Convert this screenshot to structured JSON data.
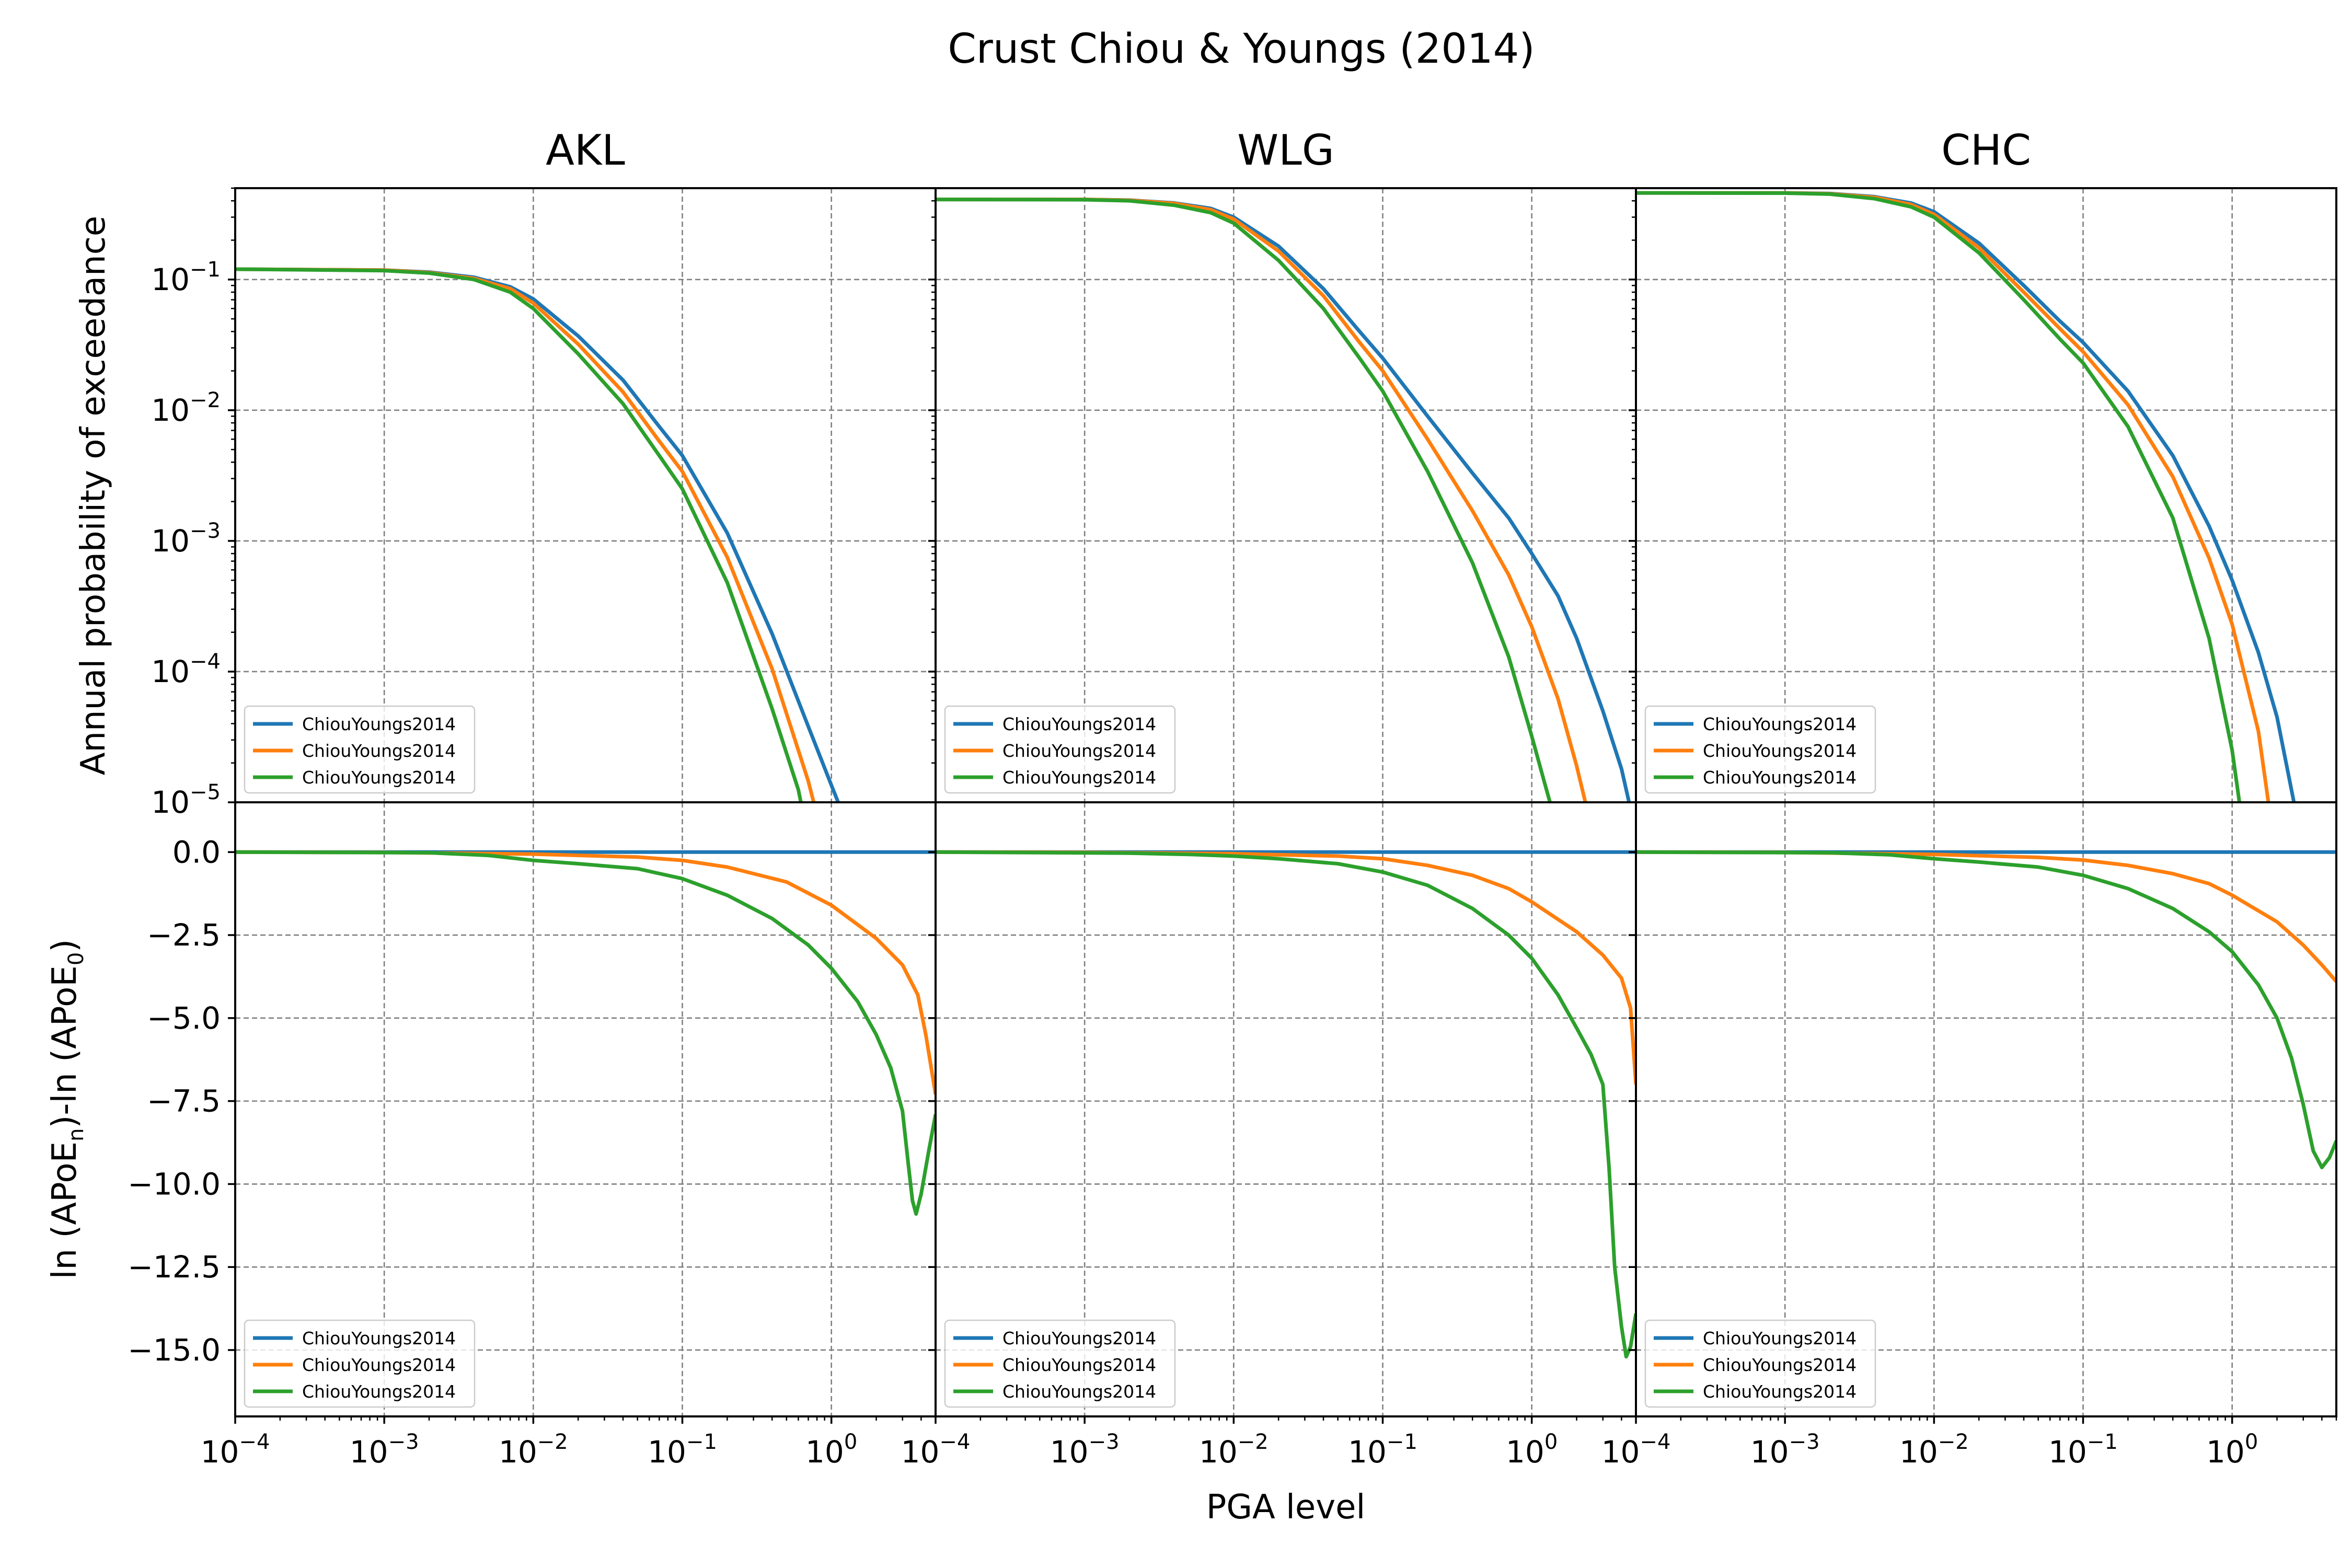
{
  "figure_title": "Crust Chiou & Youngs (2014)",
  "colors": {
    "blue": "#1f77b4",
    "orange": "#ff7f0e",
    "green": "#2ca02c",
    "grid": "#808080"
  },
  "chart_data": {
    "type": "line",
    "layout": "2 rows x 3 columns, shared axes",
    "xlabel": "PGA level",
    "ylabel_top": "Annual probability of exceedance",
    "ylabel_bottom_parts": {
      "a": "ln (APoE",
      "a_sub": "n",
      "b": ")-ln (APoE",
      "b_sub": "0",
      "c": ")"
    },
    "x_scale": "log",
    "xlim": [
      0.0001,
      5
    ],
    "ylim_top": [
      1e-05,
      0.5
    ],
    "y_scale_top": "log",
    "ylim_bottom": [
      -17,
      1.5
    ],
    "grid": true,
    "legend_location": "lower left",
    "x_tick_labels": [
      {
        "value": 0.0001,
        "base": "10",
        "exp": "−4"
      },
      {
        "value": 0.001,
        "base": "10",
        "exp": "−3"
      },
      {
        "value": 0.01,
        "base": "10",
        "exp": "−2"
      },
      {
        "value": 0.1,
        "base": "10",
        "exp": "−1"
      },
      {
        "value": 1,
        "base": "10",
        "exp": "0"
      }
    ],
    "y_tick_labels_top": [
      {
        "value": 0.1,
        "base": "10",
        "exp": "−1"
      },
      {
        "value": 0.01,
        "base": "10",
        "exp": "−2"
      },
      {
        "value": 0.001,
        "base": "10",
        "exp": "−3"
      },
      {
        "value": 0.0001,
        "base": "10",
        "exp": "−4"
      },
      {
        "value": 1e-05,
        "base": "10",
        "exp": "−5"
      }
    ],
    "y_tick_labels_bottom": [
      {
        "value": 0,
        "label": "0.0"
      },
      {
        "value": -2.5,
        "label": "−2.5"
      },
      {
        "value": -5,
        "label": "−5.0"
      },
      {
        "value": -7.5,
        "label": "−7.5"
      },
      {
        "value": -10,
        "label": "−10.0"
      },
      {
        "value": -12.5,
        "label": "−12.5"
      },
      {
        "value": -15,
        "label": "−15.0"
      }
    ],
    "panels": [
      {
        "title": "AKL",
        "apoe": [
          {
            "name": "ChiouYoungs2014",
            "color": "#1f77b4",
            "x": [
              0.0001,
              0.001,
              0.002,
              0.004,
              0.007,
              0.01,
              0.02,
              0.04,
              0.07,
              0.1,
              0.2,
              0.4,
              0.7,
              1.0,
              1.2
            ],
            "y": [
              0.12,
              0.118,
              0.114,
              0.104,
              0.088,
              0.071,
              0.037,
              0.017,
              0.0075,
              0.0045,
              0.00115,
              0.000195,
              3.8e-05,
              1.35e-05,
              8e-06
            ]
          },
          {
            "name": "ChiouYoungs2014",
            "color": "#ff7f0e",
            "x": [
              0.0001,
              0.001,
              0.002,
              0.004,
              0.007,
              0.01,
              0.02,
              0.04,
              0.07,
              0.1,
              0.2,
              0.4,
              0.7,
              0.8
            ],
            "y": [
              0.12,
              0.118,
              0.113,
              0.102,
              0.085,
              0.066,
              0.032,
              0.0138,
              0.0058,
              0.0034,
              0.00075,
              0.000105,
              1.45e-05,
              8e-06
            ]
          },
          {
            "name": "ChiouYoungs2014",
            "color": "#2ca02c",
            "x": [
              0.0001,
              0.001,
              0.002,
              0.004,
              0.007,
              0.01,
              0.02,
              0.04,
              0.07,
              0.1,
              0.2,
              0.4,
              0.6,
              0.65
            ],
            "y": [
              0.12,
              0.117,
              0.112,
              0.1,
              0.08,
              0.06,
              0.027,
              0.0112,
              0.0045,
              0.0025,
              0.00048,
              5.2e-05,
              1.25e-05,
              8e-06
            ]
          }
        ],
        "ratio": [
          {
            "name": "ChiouYoungs2014",
            "color": "#1f77b4",
            "x": [
              0.0001,
              5
            ],
            "y": [
              0,
              0
            ]
          },
          {
            "name": "ChiouYoungs2014",
            "color": "#ff7f0e",
            "x": [
              0.0001,
              0.001,
              0.01,
              0.05,
              0.1,
              0.2,
              0.5,
              1.0,
              2.0,
              3.0,
              3.8,
              4.3,
              5.0
            ],
            "y": [
              0,
              -0.01,
              -0.06,
              -0.15,
              -0.25,
              -0.45,
              -0.9,
              -1.6,
              -2.6,
              -3.4,
              -4.3,
              -5.5,
              -7.3
            ]
          },
          {
            "name": "ChiouYoungs2014",
            "color": "#2ca02c",
            "x": [
              0.0001,
              0.002,
              0.005,
              0.01,
              0.02,
              0.05,
              0.1,
              0.2,
              0.4,
              0.7,
              1.0,
              1.5,
              2.0,
              2.5,
              3.0,
              3.3,
              3.5,
              3.7,
              4.0,
              4.5,
              5.0
            ],
            "y": [
              0,
              -0.02,
              -0.1,
              -0.25,
              -0.35,
              -0.5,
              -0.8,
              -1.3,
              -2.0,
              -2.8,
              -3.5,
              -4.5,
              -5.5,
              -6.5,
              -7.8,
              -9.5,
              -10.5,
              -10.9,
              -10.3,
              -9.0,
              -7.9
            ]
          }
        ]
      },
      {
        "title": "WLG",
        "apoe": [
          {
            "name": "ChiouYoungs2014",
            "color": "#1f77b4",
            "x": [
              0.0001,
              0.001,
              0.002,
              0.004,
              0.007,
              0.01,
              0.02,
              0.04,
              0.07,
              0.1,
              0.2,
              0.4,
              0.7,
              1.0,
              1.5,
              2.0,
              3.0,
              4.0,
              4.7
            ],
            "y": [
              0.41,
              0.41,
              0.405,
              0.385,
              0.35,
              0.3,
              0.18,
              0.085,
              0.04,
              0.025,
              0.009,
              0.0033,
              0.0015,
              0.0008,
              0.00038,
              0.00018,
              5e-05,
              1.8e-05,
              8e-06
            ]
          },
          {
            "name": "ChiouYoungs2014",
            "color": "#ff7f0e",
            "x": [
              0.0001,
              0.001,
              0.002,
              0.004,
              0.007,
              0.01,
              0.02,
              0.04,
              0.07,
              0.1,
              0.2,
              0.4,
              0.7,
              1.0,
              1.5,
              2.0,
              2.4
            ],
            "y": [
              0.41,
              0.41,
              0.404,
              0.382,
              0.342,
              0.29,
              0.165,
              0.075,
              0.033,
              0.02,
              0.006,
              0.0017,
              0.00055,
              0.00022,
              6.2e-05,
              1.9e-05,
              8e-06
            ]
          },
          {
            "name": "ChiouYoungs2014",
            "color": "#2ca02c",
            "x": [
              0.0001,
              0.001,
              0.002,
              0.004,
              0.007,
              0.01,
              0.02,
              0.04,
              0.07,
              0.1,
              0.2,
              0.4,
              0.7,
              1.0,
              1.2,
              1.4
            ],
            "y": [
              0.41,
              0.408,
              0.4,
              0.37,
              0.325,
              0.27,
              0.14,
              0.06,
              0.025,
              0.014,
              0.0034,
              0.00068,
              0.00013,
              3.2e-05,
              1.5e-05,
              8e-06
            ]
          }
        ],
        "ratio": [
          {
            "name": "ChiouYoungs2014",
            "color": "#1f77b4",
            "x": [
              0.0001,
              5
            ],
            "y": [
              0,
              0
            ]
          },
          {
            "name": "ChiouYoungs2014",
            "color": "#ff7f0e",
            "x": [
              0.0001,
              0.001,
              0.01,
              0.05,
              0.1,
              0.2,
              0.4,
              0.7,
              1.0,
              2.0,
              3.0,
              4.0,
              4.6,
              5.0
            ],
            "y": [
              0,
              -0.01,
              -0.05,
              -0.12,
              -0.2,
              -0.4,
              -0.7,
              -1.1,
              -1.5,
              -2.4,
              -3.1,
              -3.8,
              -4.7,
              -7.0
            ]
          },
          {
            "name": "ChiouYoungs2014",
            "color": "#2ca02c",
            "x": [
              0.0001,
              0.002,
              0.005,
              0.01,
              0.02,
              0.05,
              0.1,
              0.2,
              0.4,
              0.7,
              1.0,
              1.5,
              2.0,
              2.5,
              3.0,
              3.3,
              3.6,
              4.0,
              4.3,
              4.6,
              5.0
            ],
            "y": [
              0,
              -0.03,
              -0.07,
              -0.12,
              -0.2,
              -0.35,
              -0.6,
              -1.0,
              -1.7,
              -2.5,
              -3.2,
              -4.3,
              -5.3,
              -6.1,
              -7.0,
              -9.5,
              -12.5,
              -14.3,
              -15.2,
              -14.9,
              -13.9
            ]
          }
        ]
      },
      {
        "title": "CHC",
        "apoe": [
          {
            "name": "ChiouYoungs2014",
            "color": "#1f77b4",
            "x": [
              0.0001,
              0.001,
              0.002,
              0.004,
              0.007,
              0.01,
              0.02,
              0.04,
              0.07,
              0.1,
              0.2,
              0.4,
              0.7,
              1.0,
              1.5,
              2.0,
              2.7
            ],
            "y": [
              0.46,
              0.46,
              0.455,
              0.43,
              0.385,
              0.33,
              0.19,
              0.09,
              0.048,
              0.033,
              0.014,
              0.0045,
              0.0013,
              0.0005,
              0.00014,
              4.5e-05,
              8e-06
            ]
          },
          {
            "name": "ChiouYoungs2014",
            "color": "#ff7f0e",
            "x": [
              0.0001,
              0.001,
              0.002,
              0.004,
              0.007,
              0.01,
              0.02,
              0.04,
              0.07,
              0.1,
              0.2,
              0.4,
              0.7,
              1.0,
              1.5,
              1.8
            ],
            "y": [
              0.46,
              0.46,
              0.453,
              0.425,
              0.375,
              0.315,
              0.175,
              0.08,
              0.042,
              0.028,
              0.011,
              0.0031,
              0.00074,
              0.00023,
              3.5e-05,
              8e-06
            ]
          },
          {
            "name": "ChiouYoungs2014",
            "color": "#2ca02c",
            "x": [
              0.0001,
              0.001,
              0.002,
              0.004,
              0.007,
              0.01,
              0.02,
              0.04,
              0.07,
              0.1,
              0.2,
              0.4,
              0.7,
              1.0,
              1.15
            ],
            "y": [
              0.46,
              0.458,
              0.45,
              0.415,
              0.36,
              0.3,
              0.16,
              0.07,
              0.035,
              0.023,
              0.0075,
              0.0015,
              0.00018,
              2.5e-05,
              8e-06
            ]
          }
        ],
        "ratio": [
          {
            "name": "ChiouYoungs2014",
            "color": "#1f77b4",
            "x": [
              0.0001,
              5
            ],
            "y": [
              0,
              0
            ]
          },
          {
            "name": "ChiouYoungs2014",
            "color": "#ff7f0e",
            "x": [
              0.0001,
              0.001,
              0.01,
              0.05,
              0.1,
              0.2,
              0.4,
              0.7,
              1.0,
              2.0,
              3.0,
              4.0,
              5.0
            ],
            "y": [
              0,
              -0.01,
              -0.07,
              -0.16,
              -0.24,
              -0.4,
              -0.65,
              -0.95,
              -1.3,
              -2.1,
              -2.8,
              -3.4,
              -3.9
            ]
          },
          {
            "name": "ChiouYoungs2014",
            "color": "#2ca02c",
            "x": [
              0.0001,
              0.002,
              0.005,
              0.01,
              0.02,
              0.05,
              0.1,
              0.2,
              0.4,
              0.7,
              1.0,
              1.5,
              2.0,
              2.5,
              3.0,
              3.5,
              4.0,
              4.5,
              5.0
            ],
            "y": [
              0,
              -0.02,
              -0.08,
              -0.2,
              -0.3,
              -0.45,
              -0.7,
              -1.1,
              -1.7,
              -2.4,
              -3.0,
              -4.0,
              -5.0,
              -6.2,
              -7.6,
              -9.0,
              -9.5,
              -9.2,
              -8.7
            ]
          }
        ]
      }
    ]
  }
}
